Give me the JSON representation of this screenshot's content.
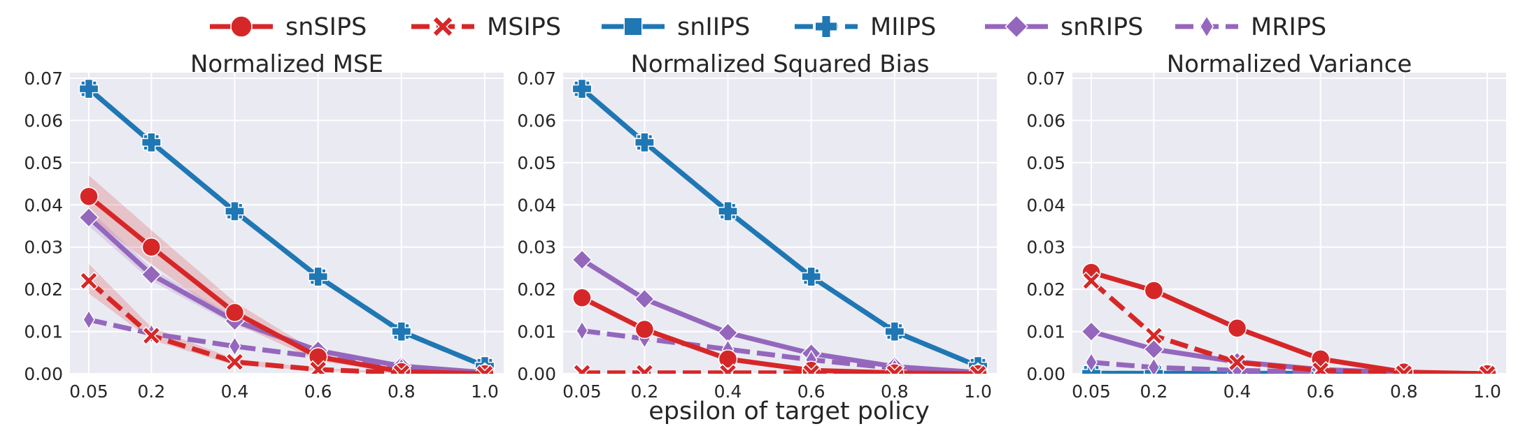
{
  "chart_data": {
    "type": "line",
    "xlabel": "epsilon of target policy",
    "x": [
      0.05,
      0.2,
      0.4,
      0.6,
      0.8,
      1.0
    ],
    "x_tick_labels": [
      "0.05",
      "0.2",
      "0.4",
      "0.6",
      "0.8",
      "1.0"
    ],
    "ylim": [
      0,
      0.07
    ],
    "y_ticks": [
      0,
      0.01,
      0.02,
      0.03,
      0.04,
      0.05,
      0.06,
      0.07
    ],
    "y_tick_labels": [
      "0.00",
      "0.01",
      "0.02",
      "0.03",
      "0.04",
      "0.05",
      "0.06",
      "0.07"
    ],
    "grid": true,
    "legend_position": "top",
    "series_styles": [
      {
        "name": "snSIPS",
        "color": "#d62728",
        "dashed": false,
        "marker": "circle"
      },
      {
        "name": "MSIPS",
        "color": "#d62728",
        "dashed": true,
        "marker": "x"
      },
      {
        "name": "snIIPS",
        "color": "#1f77b4",
        "dashed": false,
        "marker": "square"
      },
      {
        "name": "MIIPS",
        "color": "#1f77b4",
        "dashed": true,
        "marker": "plus"
      },
      {
        "name": "snRIPS",
        "color": "#9467bd",
        "dashed": false,
        "marker": "diamond"
      },
      {
        "name": "MRIPS",
        "color": "#9467bd",
        "dashed": true,
        "marker": "thin-diamond"
      }
    ],
    "panels": [
      {
        "title": "Normalized MSE",
        "series": [
          {
            "name": "snSIPS",
            "values": [
              0.042,
              0.03,
              0.0145,
              0.004,
              0.0005,
              0.0
            ],
            "band_lower": [
              0.037,
              0.026,
              0.012,
              0.003,
              0.0003,
              0.0
            ],
            "band_upper": [
              0.047,
              0.034,
              0.017,
              0.005,
              0.0008,
              0.0
            ]
          },
          {
            "name": "MSIPS",
            "values": [
              0.022,
              0.009,
              0.0028,
              0.001,
              0.0002,
              0.0
            ],
            "band_lower": [
              0.019,
              0.008,
              0.002,
              0.0007,
              0.0001,
              0.0
            ],
            "band_upper": [
              0.026,
              0.011,
              0.0035,
              0.0013,
              0.0004,
              0.0
            ]
          },
          {
            "name": "snIIPS",
            "values": [
              0.0675,
              0.0548,
              0.0385,
              0.023,
              0.01,
              0.0018
            ]
          },
          {
            "name": "MIIPS",
            "values": [
              0.0675,
              0.0548,
              0.0385,
              0.023,
              0.01,
              0.0018
            ]
          },
          {
            "name": "snRIPS",
            "values": [
              0.037,
              0.0235,
              0.0125,
              0.0055,
              0.0018,
              0.0003
            ],
            "band_lower": [
              0.035,
              0.022,
              0.0115,
              0.005,
              0.0015,
              0.0002
            ],
            "band_upper": [
              0.039,
              0.025,
              0.0135,
              0.006,
              0.002,
              0.0004
            ]
          },
          {
            "name": "MRIPS",
            "values": [
              0.0128,
              0.0095,
              0.0065,
              0.004,
              0.0015,
              0.0003
            ]
          }
        ]
      },
      {
        "title": "Normalized Squared Bias",
        "series": [
          {
            "name": "snSIPS",
            "values": [
              0.018,
              0.0105,
              0.0035,
              0.0008,
              0.0002,
              0.0
            ]
          },
          {
            "name": "MSIPS",
            "values": [
              0.0002,
              0.0002,
              0.0002,
              0.0002,
              0.0001,
              0.0
            ]
          },
          {
            "name": "snIIPS",
            "values": [
              0.0675,
              0.0548,
              0.0385,
              0.023,
              0.01,
              0.0018
            ]
          },
          {
            "name": "MIIPS",
            "values": [
              0.0675,
              0.0548,
              0.0385,
              0.023,
              0.01,
              0.0018
            ]
          },
          {
            "name": "snRIPS",
            "values": [
              0.027,
              0.0177,
              0.0097,
              0.0048,
              0.0017,
              0.0003
            ]
          },
          {
            "name": "MRIPS",
            "values": [
              0.0102,
              0.0083,
              0.0058,
              0.0033,
              0.0013,
              0.0003
            ]
          }
        ]
      },
      {
        "title": "Normalized Variance",
        "series": [
          {
            "name": "snSIPS",
            "values": [
              0.024,
              0.0197,
              0.0108,
              0.0035,
              0.0004,
              0.0
            ]
          },
          {
            "name": "MSIPS",
            "values": [
              0.022,
              0.009,
              0.0027,
              0.0008,
              0.0001,
              0.0
            ]
          },
          {
            "name": "snIIPS",
            "values": [
              0.0001,
              0.0001,
              0.0001,
              0.0001,
              0.0001,
              0.0
            ]
          },
          {
            "name": "MIIPS",
            "values": [
              0.0001,
              0.0001,
              0.0001,
              0.0001,
              0.0001,
              0.0
            ]
          },
          {
            "name": "snRIPS",
            "values": [
              0.01,
              0.0058,
              0.0028,
              0.001,
              0.0003,
              0.0
            ]
          },
          {
            "name": "MRIPS",
            "values": [
              0.0027,
              0.0015,
              0.0008,
              0.0004,
              0.0001,
              0.0
            ]
          }
        ]
      }
    ]
  }
}
